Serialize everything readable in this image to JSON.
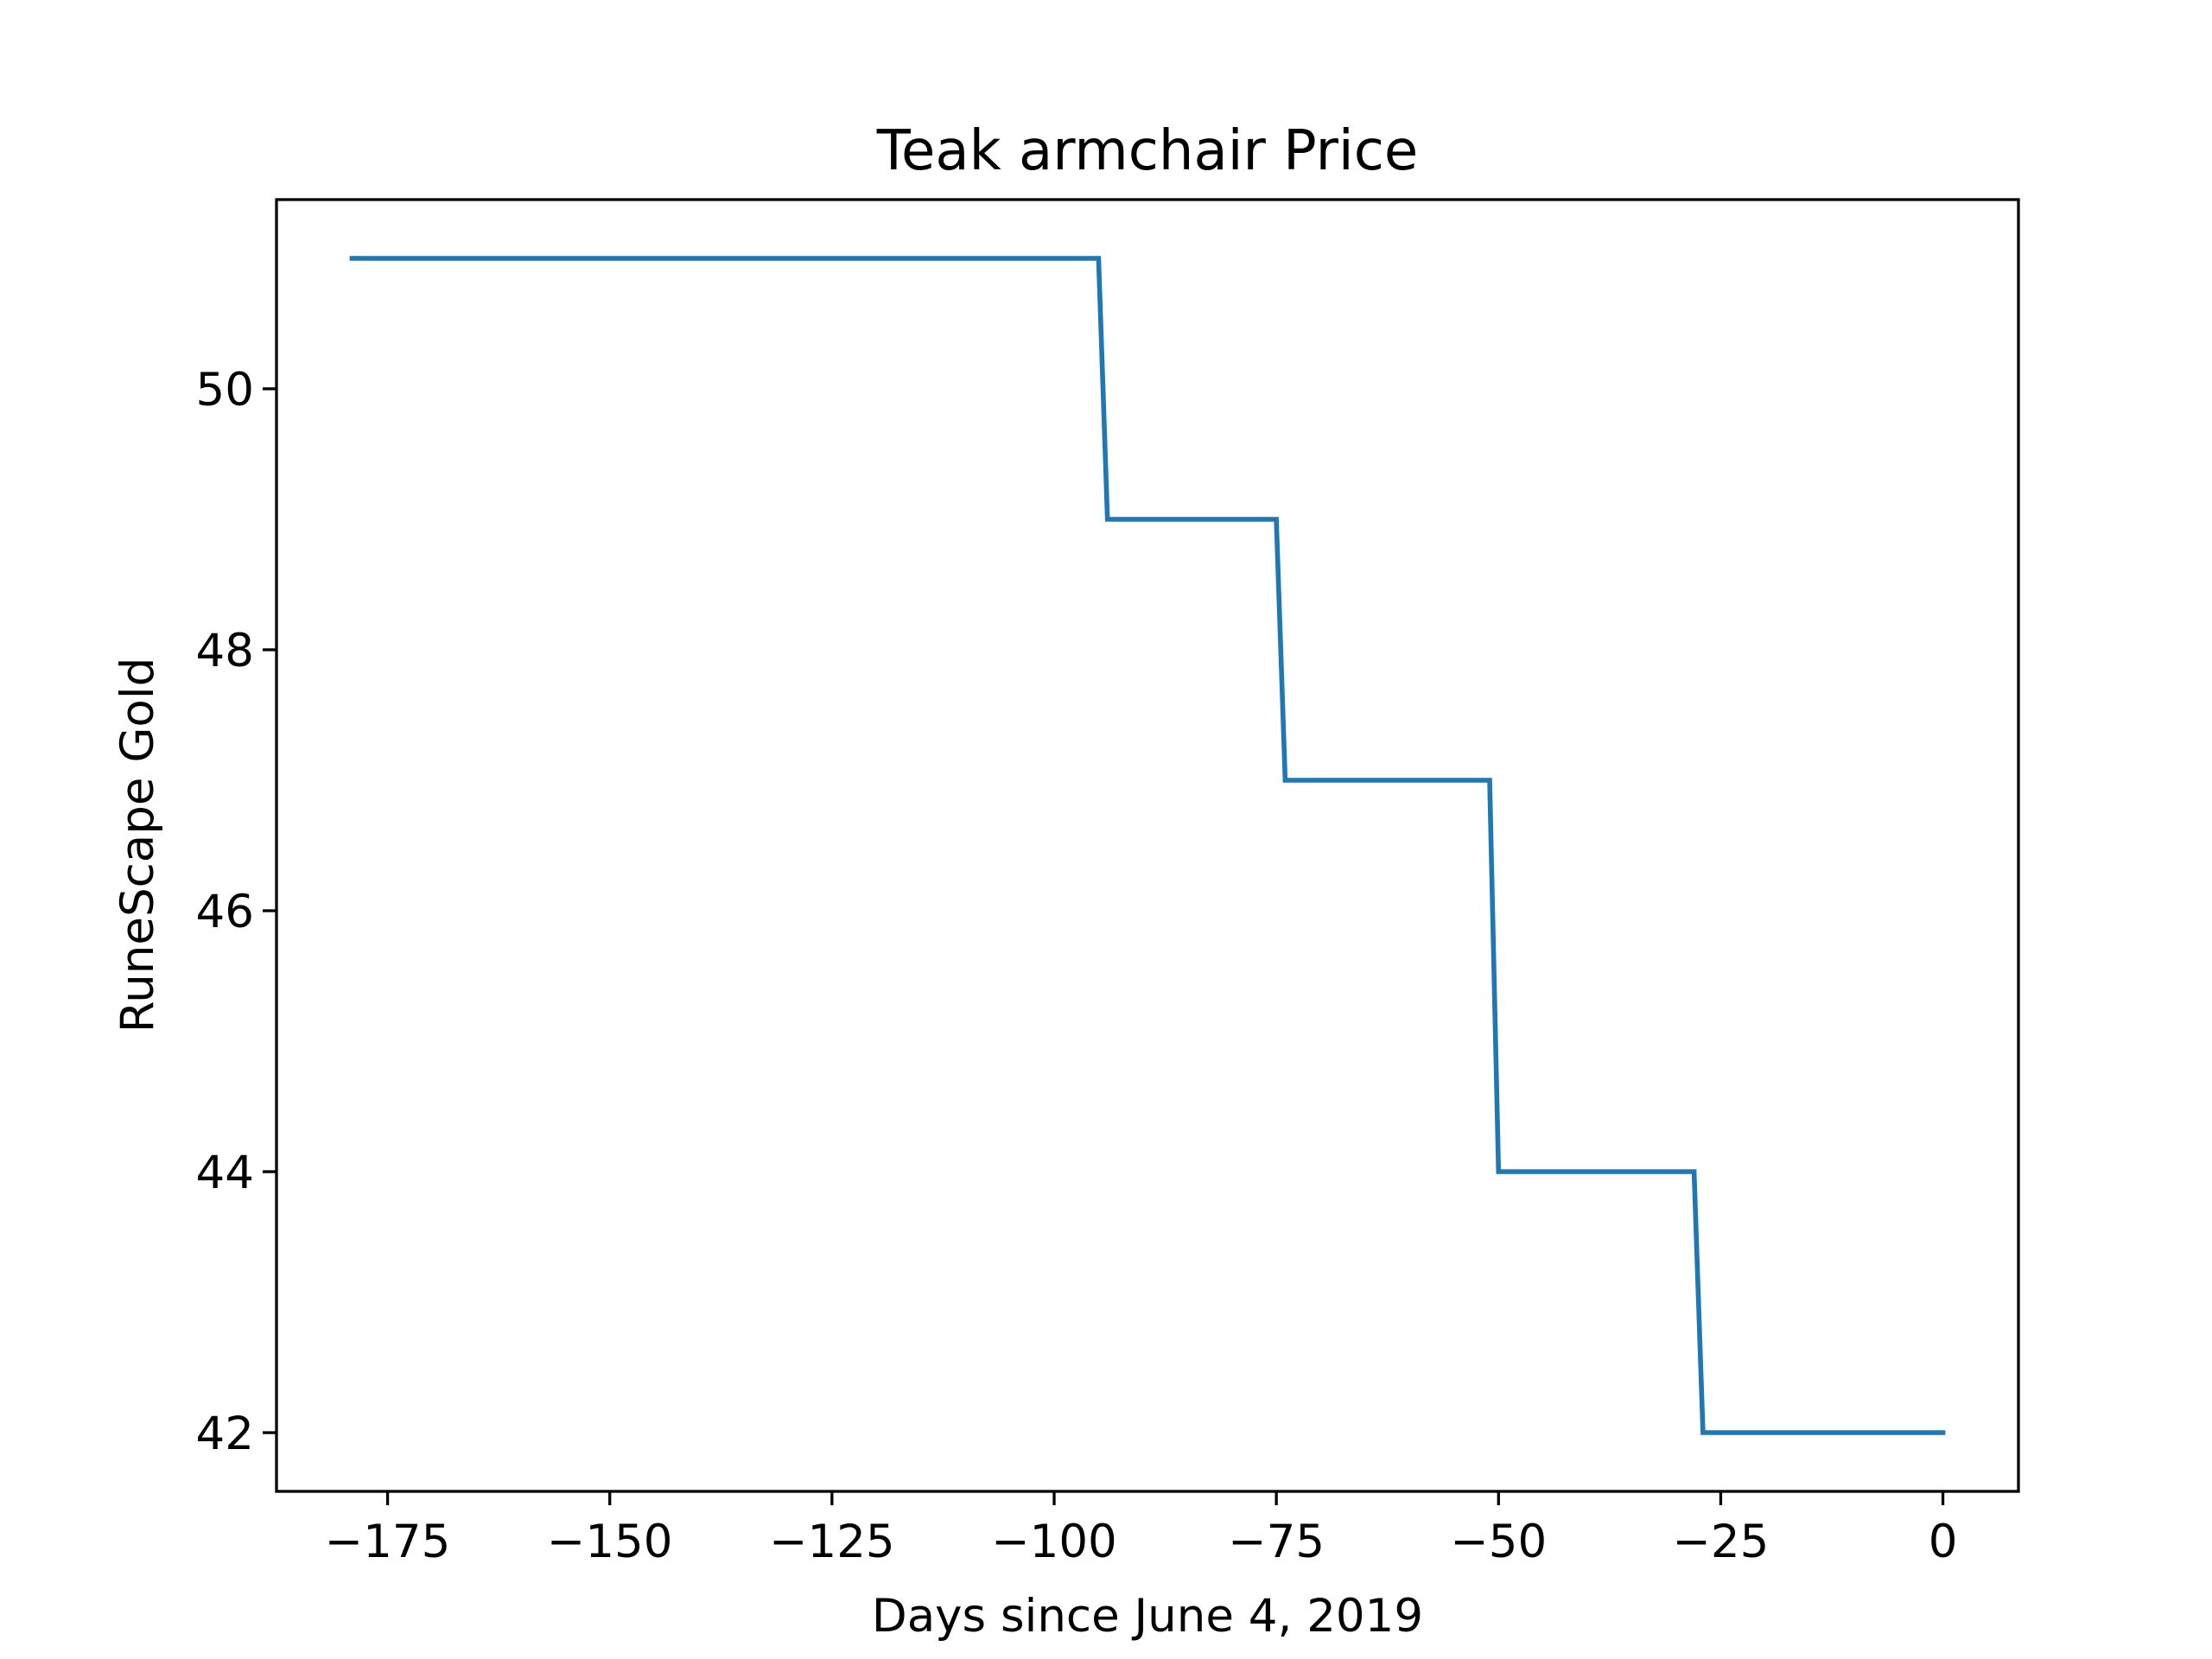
{
  "chart_data": {
    "type": "line",
    "title": "Teak armchair Price",
    "xlabel": "Days since June 4, 2019",
    "ylabel": "RuneScape Gold",
    "xlim": [
      -187.5,
      8.5
    ],
    "ylim": [
      41.55,
      51.45
    ],
    "x_ticks": [
      -175,
      -150,
      -125,
      -100,
      -75,
      -50,
      -25,
      0
    ],
    "x_tick_labels": [
      "−175",
      "−150",
      "−125",
      "−100",
      "−75",
      "−50",
      "−25",
      "0"
    ],
    "y_ticks": [
      42,
      44,
      46,
      48,
      50
    ],
    "y_tick_labels": [
      "42",
      "44",
      "46",
      "48",
      "50"
    ],
    "grid": false,
    "series": [
      {
        "color": "#1f77b4",
        "x": [
          -179,
          -95,
          -94,
          -75,
          -74,
          -51,
          -50,
          -28,
          -27,
          0
        ],
        "y": [
          51,
          51,
          49,
          49,
          47,
          47,
          44,
          44,
          42,
          42
        ]
      }
    ]
  }
}
